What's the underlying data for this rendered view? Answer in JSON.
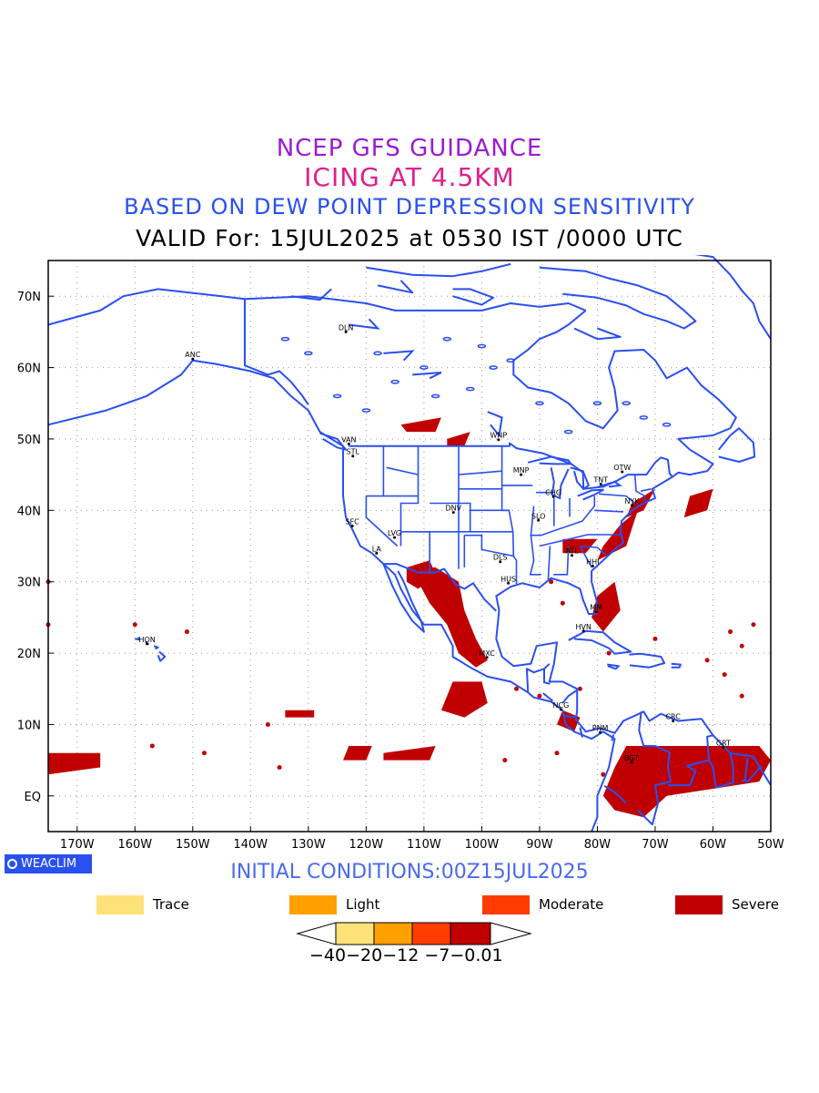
{
  "titles": {
    "line1": "NCEP GFS GUIDANCE",
    "line2": "ICING AT 4.5KM",
    "line3": "BASED ON DEW POINT DEPRESSION SENSITIVITY",
    "line4": "VALID For: 15JUL2025 at 0530 IST /0000 UTC"
  },
  "map": {
    "lon_ticks": [
      "170W",
      "160W",
      "150W",
      "140W",
      "130W",
      "120W",
      "110W",
      "100W",
      "90W",
      "80W",
      "70W",
      "60W",
      "50W"
    ],
    "lat_ticks": [
      "70N",
      "60N",
      "50N",
      "40N",
      "30N",
      "20N",
      "10N",
      "EQ"
    ],
    "lon_range": [
      -175,
      -50
    ],
    "lat_range": [
      -5,
      75
    ],
    "cities": [
      {
        "name": "ANC",
        "lon": -150,
        "lat": 61.2
      },
      {
        "name": "DLN",
        "lon": -123.5,
        "lat": 65
      },
      {
        "name": "VAN",
        "lon": -123,
        "lat": 49.3
      },
      {
        "name": "STL",
        "lon": -122.3,
        "lat": 47.6
      },
      {
        "name": "WNP",
        "lon": -97.1,
        "lat": 49.9
      },
      {
        "name": "MNP",
        "lon": -93.2,
        "lat": 45
      },
      {
        "name": "OTW",
        "lon": -75.7,
        "lat": 45.4
      },
      {
        "name": "TNT",
        "lon": -79.4,
        "lat": 43.7
      },
      {
        "name": "CHG",
        "lon": -87.6,
        "lat": 41.9
      },
      {
        "name": "NYK",
        "lon": -74,
        "lat": 40.7
      },
      {
        "name": "SFC",
        "lon": -122.4,
        "lat": 37.8
      },
      {
        "name": "DNV",
        "lon": -104.9,
        "lat": 39.7
      },
      {
        "name": "SLO",
        "lon": -90.2,
        "lat": 38.6
      },
      {
        "name": "LVG",
        "lon": -115.1,
        "lat": 36.2
      },
      {
        "name": "LA",
        "lon": -118.2,
        "lat": 34
      },
      {
        "name": "DLS",
        "lon": -96.8,
        "lat": 32.8
      },
      {
        "name": "ATL",
        "lon": -84.4,
        "lat": 33.7
      },
      {
        "name": "HHI",
        "lon": -80.8,
        "lat": 32.2
      },
      {
        "name": "HUS",
        "lon": -95.4,
        "lat": 29.8
      },
      {
        "name": "MM",
        "lon": -80.2,
        "lat": 25.8
      },
      {
        "name": "HVN",
        "lon": -82.4,
        "lat": 23.1
      },
      {
        "name": "HON",
        "lon": -157.9,
        "lat": 21.3
      },
      {
        "name": "MXC",
        "lon": -99.1,
        "lat": 19.4
      },
      {
        "name": "NCG",
        "lon": -86.3,
        "lat": 12.1
      },
      {
        "name": "PNM",
        "lon": -79.5,
        "lat": 8.9
      },
      {
        "name": "CRC",
        "lon": -66.9,
        "lat": 10.5
      },
      {
        "name": "BGT",
        "lon": -74.1,
        "lat": 4.7
      },
      {
        "name": "GRT",
        "lon": -58.2,
        "lat": 6.8
      }
    ],
    "coast_color": "#2a4ff0",
    "icing_color": "#c00000"
  },
  "brand": "WEACLIM",
  "initial_conditions": "INITIAL CONDITIONS:00Z15JUL2025",
  "legend": [
    {
      "label": "Trace",
      "color": "#fde27a"
    },
    {
      "label": "Light",
      "color": "#ffa000"
    },
    {
      "label": "Moderate",
      "color": "#ff3c00"
    },
    {
      "label": "Severe",
      "color": "#c00000"
    }
  ],
  "colorbar": {
    "colors": [
      "#fde27a",
      "#ffa000",
      "#ff3c00",
      "#c00000"
    ],
    "labels": "−40−20−12 −7−0.01"
  }
}
